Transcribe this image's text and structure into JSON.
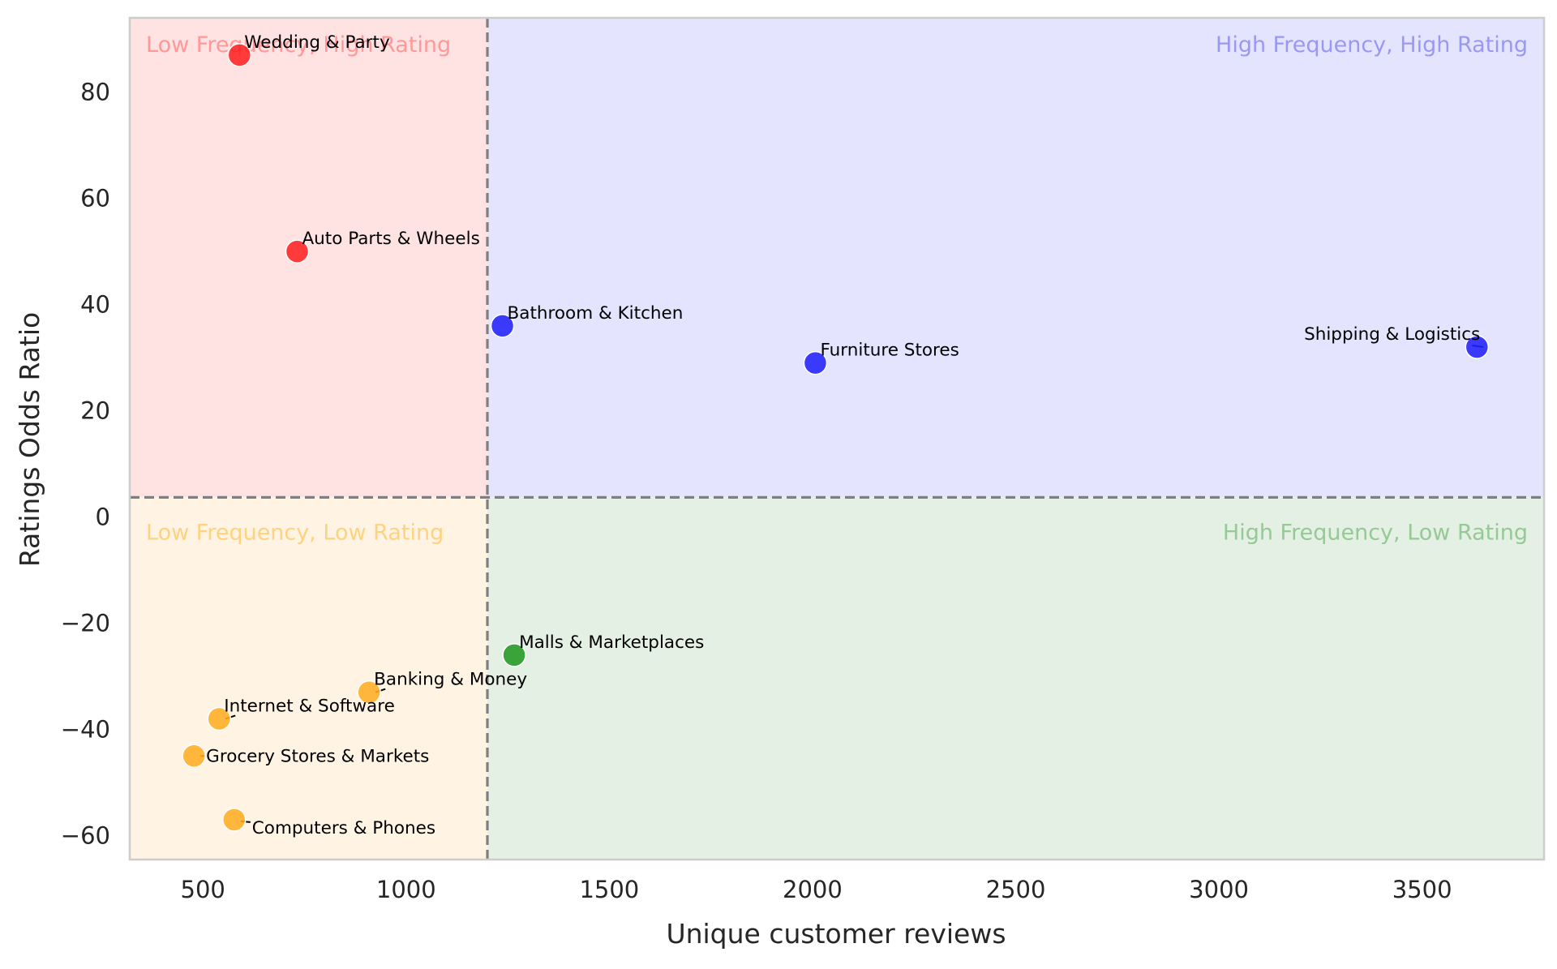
{
  "chart_data": {
    "type": "scatter",
    "xlabel": "Unique customer reviews",
    "ylabel": "Ratings Odds Ratio",
    "xlim": [
      320,
      3800
    ],
    "ylim": [
      -64.5,
      94
    ],
    "xticks": [
      500,
      1000,
      1500,
      2000,
      2500,
      3000,
      3500
    ],
    "xtick_labels": [
      "500",
      "1000",
      "1500",
      "2000",
      "2500",
      "3000",
      "3500"
    ],
    "yticks": [
      -60,
      -40,
      -20,
      0,
      20,
      40,
      60,
      80
    ],
    "ytick_labels": [
      "−60",
      "−40",
      "−20",
      "0",
      "20",
      "40",
      "60",
      "80"
    ],
    "grid": false,
    "thresholds": {
      "x": 1200,
      "y": 3.7
    },
    "quadrants": [
      {
        "label": "Low Frequency, High Rating",
        "region": "top-left",
        "fill": "#ffe2e2",
        "text_color": "#ff9999"
      },
      {
        "label": "High Frequency, High Rating",
        "region": "top-right",
        "fill": "#e4e4ff",
        "text_color": "#9999f2"
      },
      {
        "label": "Low Frequency, Low Rating",
        "region": "bottom-left",
        "fill": "#fff3e3",
        "text_color": "#ffd27f"
      },
      {
        "label": "High Frequency, Low Rating",
        "region": "bottom-right",
        "fill": "#e5f0e4",
        "text_color": "#95c995"
      }
    ],
    "points": [
      {
        "label": "Wedding & Party",
        "x": 590,
        "y": 87,
        "color": "#ff2222",
        "label_pos": "above-right"
      },
      {
        "label": "Auto Parts & Wheels",
        "x": 732,
        "y": 50,
        "color": "#ff2222",
        "label_pos": "above-right"
      },
      {
        "label": "Bathroom & Kitchen",
        "x": 1237,
        "y": 36,
        "color": "#2222ff",
        "label_pos": "above-right"
      },
      {
        "label": "Furniture Stores",
        "x": 2007,
        "y": 29,
        "color": "#2222ff",
        "label_pos": "above-right"
      },
      {
        "label": "Shipping & Logistics",
        "x": 3635,
        "y": 32,
        "color": "#2222ff",
        "label_pos": "above-left"
      },
      {
        "label": "Malls & Marketplaces",
        "x": 1266,
        "y": -26,
        "color": "#229922",
        "label_pos": "above-right"
      },
      {
        "label": "Banking & Money",
        "x": 909,
        "y": -33,
        "color": "#ffad22",
        "label_pos": "above-right"
      },
      {
        "label": "Internet & Software",
        "x": 540,
        "y": -38,
        "color": "#ffad22",
        "label_pos": "above-right"
      },
      {
        "label": "Grocery Stores & Markets",
        "x": 478,
        "y": -45,
        "color": "#ffad22",
        "label_pos": "right"
      },
      {
        "label": "Computers & Phones",
        "x": 577,
        "y": -57,
        "color": "#ffad22",
        "label_pos": "below-right"
      }
    ]
  }
}
